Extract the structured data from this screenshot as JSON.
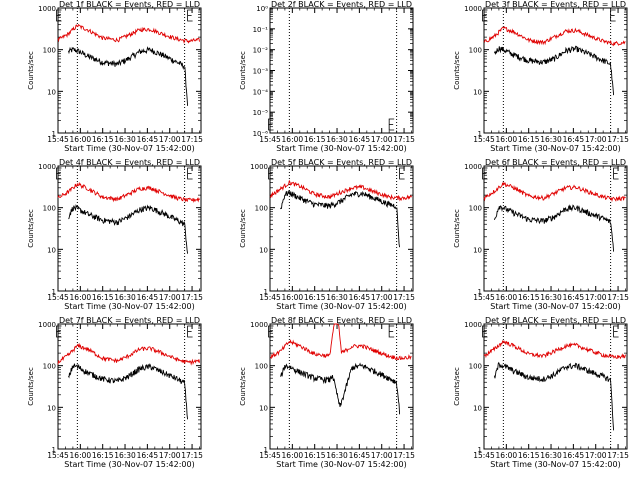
{
  "figure": {
    "xlabel": "Start Time (30-Nov-07 15:42:00)",
    "ylabel": "Counts/sec",
    "xticks": [
      "15:45",
      "16:00",
      "16:15",
      "16:30",
      "16:45",
      "17:00",
      "17:15"
    ],
    "yticks_main": [
      "1",
      "10",
      "100",
      "1000"
    ],
    "yticks_det2": [
      "10⁰",
      "10⁻¹",
      "10⁻²",
      "10⁻³",
      "10⁻⁴",
      "10⁻⁵",
      "10⁻⁶"
    ],
    "flag_label": "E",
    "colors": {
      "events": "#000000",
      "lld": "#e00000"
    }
  },
  "chart_data": [
    {
      "type": "line",
      "title": "Det 1f BLACK = Events, RED = LLD",
      "xlabel": "Start Time (30-Nov-07 15:42:00)",
      "ylabel": "Counts/sec",
      "log_y": true,
      "ylim": [
        1,
        1000
      ],
      "markers": [
        "15:58",
        "17:10"
      ],
      "flags": [
        "15:44",
        "17:12"
      ],
      "series": [
        {
          "name": "Events",
          "x": [
            "15:52",
            "15:55",
            "15:58",
            "16:05",
            "16:15",
            "16:25",
            "16:32",
            "16:40",
            "16:47",
            "16:55",
            "17:05",
            "17:10",
            "17:12"
          ],
          "values": [
            90,
            100,
            95,
            70,
            50,
            45,
            60,
            90,
            100,
            75,
            50,
            40,
            5
          ]
        },
        {
          "name": "LLD",
          "x": [
            "15:45",
            "15:52",
            "15:58",
            "16:05",
            "16:15",
            "16:25",
            "16:32",
            "16:40",
            "16:47",
            "16:55",
            "17:05",
            "17:12",
            "17:20"
          ],
          "values": [
            170,
            240,
            380,
            300,
            190,
            170,
            220,
            300,
            310,
            240,
            180,
            160,
            170
          ]
        }
      ]
    },
    {
      "type": "line",
      "title": "Det 2f BLACK = Events, RED = LLD",
      "xlabel": "Start Time (30-Nov-07 15:42:00)",
      "ylabel": "Counts/sec",
      "log_y": true,
      "ylim": [
        1e-06,
        1
      ],
      "markers": [
        "15:58",
        "17:10"
      ],
      "flags": [
        "15:44",
        "17:05"
      ],
      "series": []
    },
    {
      "type": "line",
      "title": "Det 3f BLACK = Events, RED = LLD",
      "xlabel": "Start Time (30-Nov-07 15:42:00)",
      "ylabel": "Counts/sec",
      "log_y": true,
      "ylim": [
        1,
        1000
      ],
      "markers": [
        "15:58",
        "17:10"
      ],
      "flags": [
        "15:44",
        "17:10"
      ],
      "series": [
        {
          "name": "Events",
          "x": [
            "15:52",
            "15:55",
            "15:58",
            "16:05",
            "16:15",
            "16:25",
            "16:32",
            "16:40",
            "16:47",
            "16:55",
            "17:05",
            "17:10",
            "17:12"
          ],
          "values": [
            80,
            110,
            100,
            75,
            55,
            50,
            60,
            95,
            105,
            80,
            55,
            45,
            8
          ]
        },
        {
          "name": "LLD",
          "x": [
            "15:45",
            "15:52",
            "15:58",
            "16:05",
            "16:15",
            "16:25",
            "16:32",
            "16:40",
            "16:47",
            "16:55",
            "17:05",
            "17:12",
            "17:20"
          ],
          "values": [
            150,
            210,
            330,
            270,
            170,
            150,
            200,
            280,
            290,
            220,
            160,
            140,
            150
          ]
        }
      ]
    },
    {
      "type": "line",
      "title": "Det 4f BLACK = Events, RED = LLD",
      "xlabel": "Start Time (30-Nov-07 15:42:00)",
      "ylabel": "Counts/sec",
      "log_y": true,
      "ylim": [
        1,
        1000
      ],
      "markers": [
        "15:58",
        "17:10"
      ],
      "flags": [
        "15:44",
        "17:12"
      ],
      "series": [
        {
          "name": "Events",
          "x": [
            "15:52",
            "15:55",
            "15:58",
            "16:05",
            "16:15",
            "16:25",
            "16:32",
            "16:40",
            "16:47",
            "16:55",
            "17:05",
            "17:10",
            "17:12"
          ],
          "values": [
            60,
            100,
            95,
            70,
            50,
            45,
            60,
            90,
            100,
            75,
            50,
            40,
            8
          ]
        },
        {
          "name": "LLD",
          "x": [
            "15:45",
            "15:52",
            "15:58",
            "16:05",
            "16:15",
            "16:25",
            "16:32",
            "16:40",
            "16:47",
            "16:55",
            "17:05",
            "17:12",
            "17:20"
          ],
          "values": [
            170,
            240,
            370,
            290,
            180,
            160,
            210,
            290,
            300,
            230,
            170,
            150,
            160
          ]
        }
      ]
    },
    {
      "type": "line",
      "title": "Det 5f BLACK = Events, RED = LLD",
      "xlabel": "Start Time (30-Nov-07 15:42:00)",
      "ylabel": "Counts/sec",
      "log_y": true,
      "ylim": [
        1,
        1000
      ],
      "markers": [
        "15:58",
        "17:10"
      ],
      "flags": [
        "15:44",
        "17:12"
      ],
      "series": [
        {
          "name": "Events",
          "x": [
            "15:52",
            "15:55",
            "15:58",
            "16:05",
            "16:15",
            "16:25",
            "16:32",
            "16:40",
            "16:47",
            "16:55",
            "17:05",
            "17:10",
            "17:12"
          ],
          "values": [
            90,
            210,
            230,
            170,
            120,
            110,
            140,
            210,
            220,
            170,
            120,
            110,
            10
          ]
        },
        {
          "name": "LLD",
          "x": [
            "15:45",
            "15:52",
            "15:58",
            "16:05",
            "16:15",
            "16:25",
            "16:32",
            "16:40",
            "16:47",
            "16:55",
            "17:05",
            "17:12",
            "17:20"
          ],
          "values": [
            190,
            280,
            400,
            330,
            210,
            180,
            230,
            300,
            310,
            240,
            180,
            170,
            180
          ]
        }
      ]
    },
    {
      "type": "line",
      "title": "Det 6f BLACK = Events, RED = LLD",
      "xlabel": "Start Time (30-Nov-07 15:42:00)",
      "ylabel": "Counts/sec",
      "log_y": true,
      "ylim": [
        1,
        1000
      ],
      "markers": [
        "15:58",
        "17:10"
      ],
      "flags": [
        "15:44",
        "17:12"
      ],
      "series": [
        {
          "name": "Events",
          "x": [
            "15:52",
            "15:55",
            "15:58",
            "16:05",
            "16:15",
            "16:25",
            "16:32",
            "16:40",
            "16:47",
            "16:55",
            "17:05",
            "17:10",
            "17:12"
          ],
          "values": [
            50,
            110,
            100,
            75,
            52,
            48,
            60,
            95,
            100,
            75,
            55,
            45,
            10
          ]
        },
        {
          "name": "LLD",
          "x": [
            "15:45",
            "15:52",
            "15:58",
            "16:05",
            "16:15",
            "16:25",
            "16:32",
            "16:40",
            "16:47",
            "16:55",
            "17:05",
            "17:12",
            "17:20"
          ],
          "values": [
            170,
            250,
            380,
            300,
            190,
            170,
            220,
            300,
            310,
            240,
            180,
            160,
            170
          ]
        }
      ]
    },
    {
      "type": "line",
      "title": "Det 7f BLACK = Events, RED = LLD",
      "xlabel": "Start Time (30-Nov-07 15:42:00)",
      "ylabel": "Counts/sec",
      "log_y": true,
      "ylim": [
        1,
        1000
      ],
      "markers": [
        "15:58",
        "17:10"
      ],
      "flags": [
        "15:44",
        "17:12"
      ],
      "series": [
        {
          "name": "Events",
          "x": [
            "15:52",
            "15:55",
            "15:58",
            "16:05",
            "16:15",
            "16:25",
            "16:32",
            "16:40",
            "16:47",
            "16:55",
            "17:05",
            "17:10",
            "17:12"
          ],
          "values": [
            50,
            100,
            95,
            68,
            48,
            42,
            55,
            85,
            95,
            70,
            48,
            38,
            5
          ]
        },
        {
          "name": "LLD",
          "x": [
            "15:45",
            "15:52",
            "15:58",
            "16:05",
            "16:15",
            "16:25",
            "16:32",
            "16:40",
            "16:47",
            "16:55",
            "17:05",
            "17:12",
            "17:20"
          ],
          "values": [
            120,
            180,
            300,
            250,
            150,
            130,
            170,
            250,
            260,
            200,
            140,
            120,
            130
          ]
        }
      ]
    },
    {
      "type": "line",
      "title": "Det 8f BLACK = Events, RED = LLD",
      "xlabel": "Start Time (30-Nov-07 15:42:00)",
      "ylabel": "Counts/sec",
      "log_y": true,
      "ylim": [
        1,
        1000
      ],
      "markers": [
        "15:58",
        "17:10"
      ],
      "flags": [
        "15:44",
        "17:05"
      ],
      "series": [
        {
          "name": "Events",
          "x": [
            "15:52",
            "15:55",
            "15:58",
            "16:05",
            "16:15",
            "16:25",
            "16:27",
            "16:32",
            "16:40",
            "16:47",
            "16:55",
            "17:05",
            "17:10",
            "17:12"
          ],
          "values": [
            50,
            100,
            95,
            70,
            50,
            45,
            60,
            10,
            90,
            100,
            75,
            50,
            40,
            8
          ]
        },
        {
          "name": "LLD",
          "x": [
            "15:45",
            "15:52",
            "15:58",
            "16:05",
            "16:15",
            "16:25",
            "16:28",
            "16:31",
            "16:33",
            "16:40",
            "16:47",
            "16:55",
            "17:05",
            "17:12",
            "17:20"
          ],
          "values": [
            160,
            220,
            380,
            300,
            190,
            170,
            1000,
            1000,
            200,
            290,
            300,
            230,
            170,
            150,
            160
          ]
        }
      ]
    },
    {
      "type": "line",
      "title": "Det 9f BLACK = Events, RED = LLD",
      "xlabel": "Start Time (30-Nov-07 15:42:00)",
      "ylabel": "Counts/sec",
      "log_y": true,
      "ylim": [
        1,
        1000
      ],
      "markers": [
        "15:58",
        "17:10"
      ],
      "flags": [
        "15:44",
        "17:12"
      ],
      "series": [
        {
          "name": "Events",
          "x": [
            "15:52",
            "15:55",
            "15:58",
            "16:05",
            "16:15",
            "16:25",
            "16:32",
            "16:40",
            "16:47",
            "16:55",
            "17:05",
            "17:10",
            "17:12"
          ],
          "values": [
            50,
            110,
            100,
            75,
            52,
            48,
            60,
            95,
            100,
            75,
            55,
            45,
            3
          ]
        },
        {
          "name": "LLD",
          "x": [
            "15:45",
            "15:52",
            "15:58",
            "16:05",
            "16:15",
            "16:25",
            "16:32",
            "16:40",
            "16:47",
            "16:55",
            "17:05",
            "17:12",
            "17:20"
          ],
          "values": [
            170,
            250,
            380,
            300,
            190,
            170,
            220,
            300,
            310,
            240,
            180,
            160,
            170
          ]
        }
      ]
    }
  ]
}
